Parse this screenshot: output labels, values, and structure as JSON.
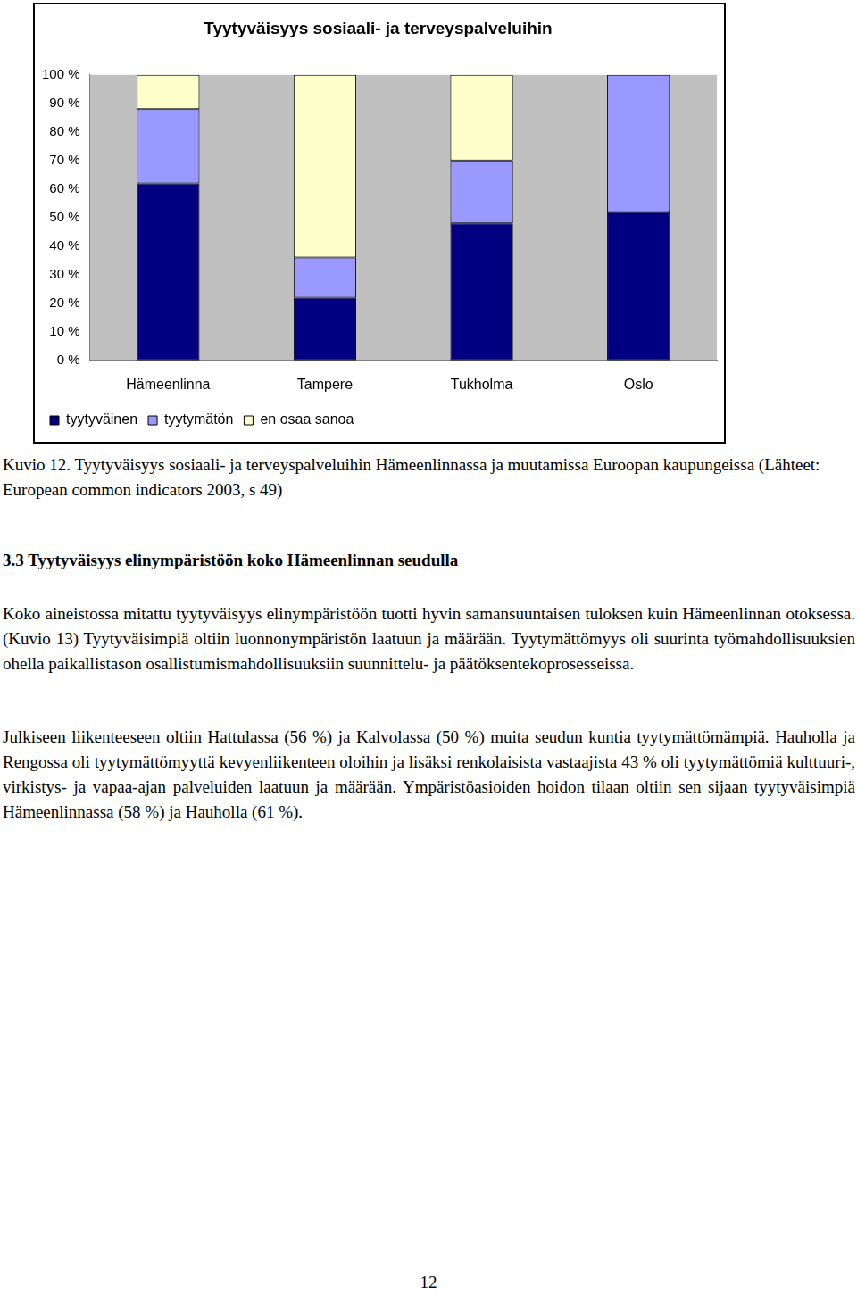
{
  "chart_data": {
    "type": "bar",
    "title": "Tyytyväisyys sosiaali- ja terveyspalveluihin",
    "categories": [
      "Hämeenlinna",
      "Tampere",
      "Tukholma",
      "Oslo"
    ],
    "series": [
      {
        "name": "tyytyväinen",
        "color": "#000080",
        "values": [
          62,
          22,
          48,
          52
        ]
      },
      {
        "name": "tyytymätön",
        "color": "#9999ff",
        "values": [
          26,
          14,
          22,
          48
        ]
      },
      {
        "name": "en osaa sanoa",
        "color": "#ffffcc",
        "values": [
          12,
          64,
          30,
          0
        ]
      }
    ],
    "stacked": true,
    "ylim": [
      0,
      100
    ],
    "yticks": [
      {
        "value": 0,
        "label": "0 %"
      },
      {
        "value": 10,
        "label": "10 %"
      },
      {
        "value": 20,
        "label": "20 %"
      },
      {
        "value": 30,
        "label": "30 %"
      },
      {
        "value": 40,
        "label": "40 %"
      },
      {
        "value": 50,
        "label": "50 %"
      },
      {
        "value": 60,
        "label": "60 %"
      },
      {
        "value": 70,
        "label": "70 %"
      },
      {
        "value": 80,
        "label": "80 %"
      },
      {
        "value": 90,
        "label": "90 %"
      },
      {
        "value": 100,
        "label": "100 %"
      }
    ],
    "grid": false,
    "legend": "bottom"
  },
  "document": {
    "caption": "Kuvio 12. Tyytyväisyys sosiaali- ja terveyspalveluihin Hämeenlinnassa ja muutamissa Euroopan kaupungeissa (Lähteet: European common indicators 2003, s 49)",
    "heading": "3.3 Tyytyväisyys elinympäristöön koko Hämeenlinnan seudulla",
    "paragraphs": [
      "Koko aineistossa mitattu tyytyväisyys elinympäristöön tuotti hyvin samansuuntaisen tuloksen kuin Hämeenlinnan otoksessa. (Kuvio 13) Tyytyväisimpiä oltiin luonnonympäristön laatuun ja määrään. Tyytymättömyys oli suurinta työmahdollisuuksien ohella paikallistason osallistumismahdollisuuksiin suunnittelu- ja päätöksentekoprosesseissa.",
      "Julkiseen liikenteeseen oltiin Hattulassa (56 %) ja Kalvolassa (50 %) muita seudun kuntia tyytymättömämpiä. Hauholla ja Rengossa oli tyytymättömyyttä kevyenliikenteen oloihin ja lisäksi renkolaisista vastaajista 43 % oli tyytymättömiä kulttuuri-, virkistys- ja vapaa-ajan palveluiden laatuun ja määrään. Ympäristöasioiden hoidon tilaan oltiin sen sijaan tyytyväisimpiä Hämeenlinnassa (58 %) ja Hauholla (61 %)."
    ],
    "page_number": "12"
  }
}
